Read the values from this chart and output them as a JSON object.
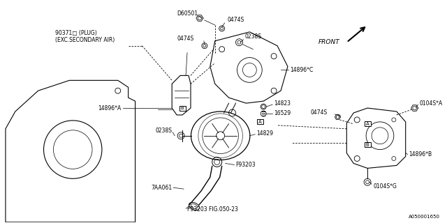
{
  "bg_color": "#ffffff",
  "line_color": "#000000",
  "fig_width": 6.4,
  "fig_height": 3.2,
  "dpi": 100,
  "diagram_id": "A050001650",
  "labels": {
    "plug": "90371□ (PLUG)\n(EXC.SECONDARY AIR)",
    "D60501": "D60501",
    "0474S_top": "0474S",
    "0238S_top": "0238S",
    "0474S_mid_left": "0474S",
    "14896C": "14896*C",
    "14823": "14823",
    "16529": "16529",
    "14896A": "14896*A",
    "0238S_left": "0238S",
    "14829": "14829",
    "F93203_mid": "F93203",
    "7AA061": "7AA061",
    "F93203_bot": "F93203 FIG.050-23",
    "0474S_right": "0474S",
    "0104S_A": "0104S*A",
    "14896B": "14896*B",
    "0104S_G": "0104S*G",
    "front": "FRONT"
  }
}
